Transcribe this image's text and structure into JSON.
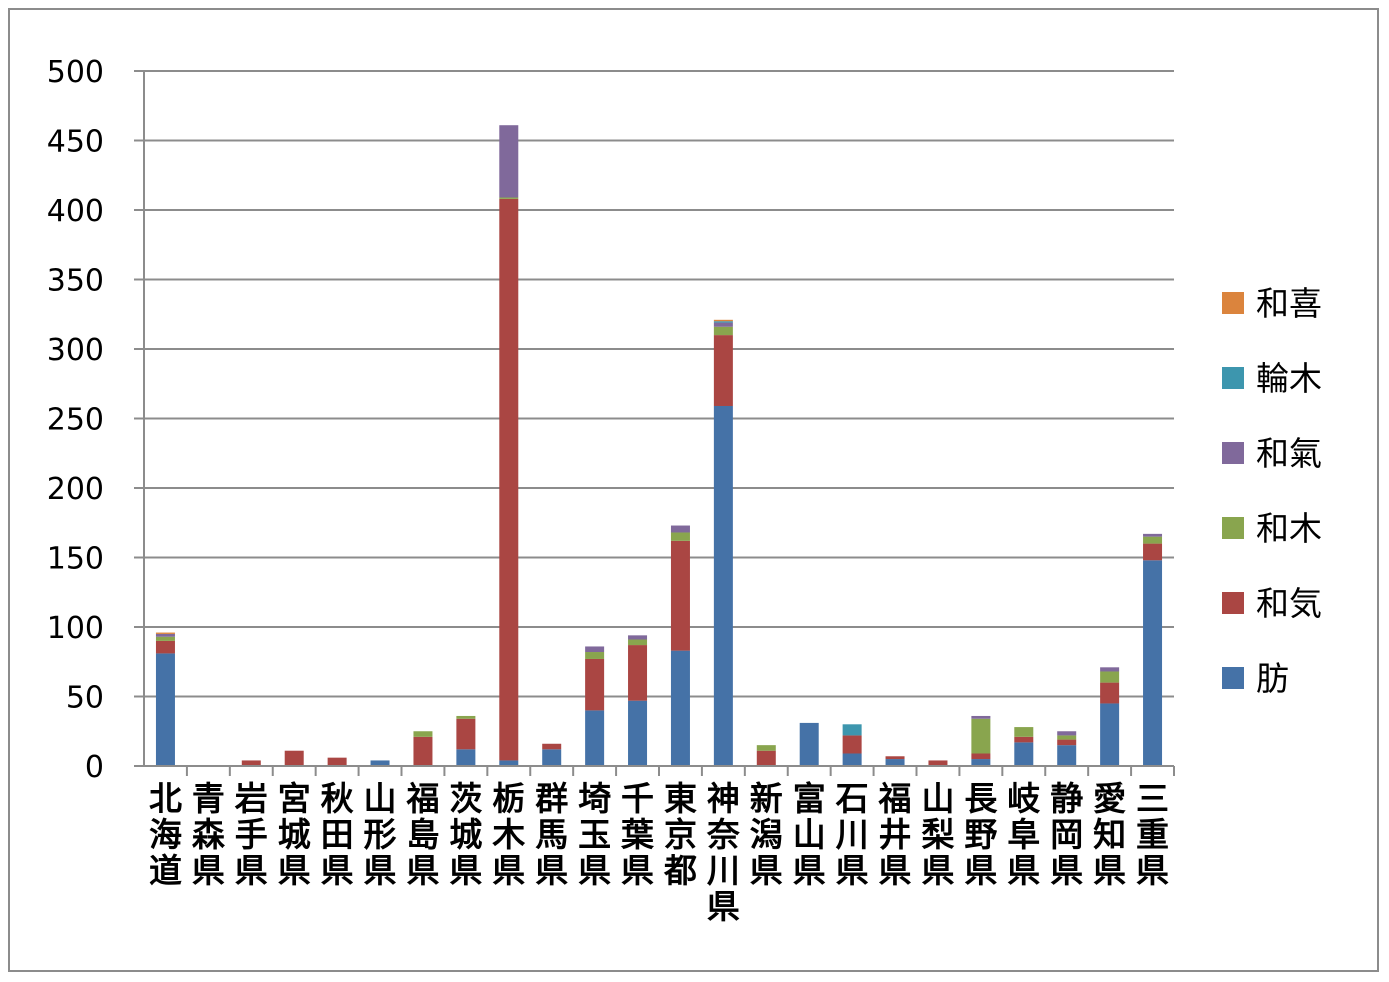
{
  "chart_data": {
    "type": "bar",
    "stacked": true,
    "title": "",
    "xlabel": "",
    "ylabel": "",
    "ylim": [
      0,
      500
    ],
    "yticks": [
      0,
      50,
      100,
      150,
      200,
      250,
      300,
      350,
      400,
      450,
      500
    ],
    "grid": true,
    "legend_position": "right",
    "categories": [
      "北海道",
      "青森県",
      "岩手県",
      "宮城県",
      "秋田県",
      "山形県",
      "福島県",
      "茨城県",
      "栃木県",
      "群馬県",
      "埼玉県",
      "千葉県",
      "東京都",
      "神奈川県",
      "新潟県",
      "富山県",
      "石川県",
      "福井県",
      "山梨県",
      "長野県",
      "岐阜県",
      "静岡県",
      "愛知県",
      "三重県"
    ],
    "series": [
      {
        "name": "肪",
        "color": "#4572A7",
        "values": [
          81,
          0,
          0,
          0,
          0,
          4,
          0,
          12,
          4,
          12,
          40,
          47,
          83,
          259,
          0,
          31,
          9,
          5,
          0,
          5,
          17,
          15,
          45,
          148
        ]
      },
      {
        "name": "和気",
        "color": "#AA4643",
        "values": [
          9,
          0,
          4,
          11,
          6,
          0,
          21,
          22,
          404,
          4,
          37,
          40,
          79,
          51,
          11,
          0,
          13,
          2,
          4,
          4,
          4,
          4,
          15,
          12
        ]
      },
      {
        "name": "和木",
        "color": "#89A54E",
        "values": [
          3,
          0,
          0,
          0,
          0,
          0,
          4,
          2,
          1,
          0,
          5,
          4,
          6,
          6,
          4,
          0,
          0,
          0,
          0,
          25,
          7,
          3,
          8,
          5
        ]
      },
      {
        "name": "和氣",
        "color": "#80699B",
        "values": [
          2,
          0,
          0,
          0,
          0,
          0,
          0,
          0,
          52,
          0,
          4,
          3,
          5,
          3,
          0,
          0,
          0,
          0,
          0,
          2,
          0,
          3,
          3,
          2
        ]
      },
      {
        "name": "輪木",
        "color": "#3D96AE",
        "values": [
          0,
          0,
          0,
          0,
          0,
          0,
          0,
          0,
          0,
          0,
          0,
          0,
          0,
          1,
          0,
          0,
          8,
          0,
          0,
          0,
          0,
          0,
          0,
          0
        ]
      },
      {
        "name": "和喜",
        "color": "#DB843D",
        "values": [
          1,
          0,
          0,
          0,
          0,
          0,
          0,
          0,
          0,
          0,
          0,
          0,
          0,
          1,
          0,
          0,
          0,
          0,
          0,
          0,
          0,
          0,
          0,
          0
        ]
      }
    ]
  }
}
